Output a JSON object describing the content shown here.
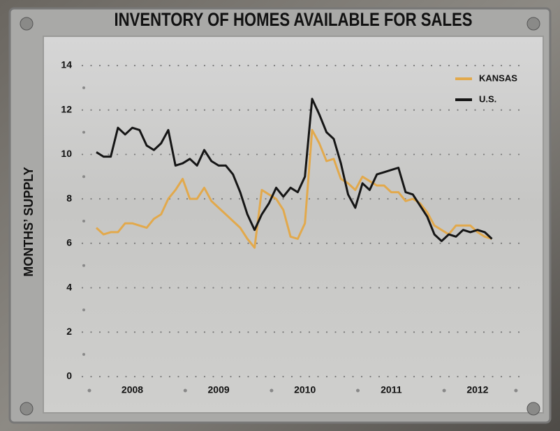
{
  "chart_data": {
    "type": "line",
    "title": "INVENTORY OF HOMES AVAILABLE FOR SALES",
    "y_label": "MONTHS’ SUPPLY",
    "categories": [
      null,
      null,
      null,
      null,
      null,
      "2008",
      null,
      null,
      null,
      null,
      null,
      null,
      null,
      null,
      null,
      null,
      null,
      "2009",
      null,
      null,
      null,
      null,
      null,
      null,
      null,
      null,
      null,
      null,
      null,
      "2010",
      null,
      null,
      null,
      null,
      null,
      null,
      null,
      null,
      null,
      null,
      null,
      "2011",
      null,
      null,
      null,
      null,
      null,
      null,
      null,
      null,
      null,
      null,
      null,
      "2012",
      null,
      null
    ],
    "series": [
      {
        "name": "KANSAS",
        "color": "#e2a94c",
        "values": [
          6.7,
          6.4,
          6.5,
          6.5,
          6.9,
          6.9,
          6.8,
          6.7,
          7.1,
          7.3,
          8.0,
          8.4,
          8.9,
          8.0,
          8.0,
          8.5,
          7.9,
          7.6,
          7.3,
          7.0,
          6.7,
          6.2,
          5.8,
          8.4,
          8.2,
          8.0,
          7.5,
          6.3,
          6.2,
          6.9,
          11.1,
          10.5,
          9.7,
          9.8,
          8.9,
          8.7,
          8.4,
          9.0,
          8.8,
          8.6,
          8.6,
          8.3,
          8.3,
          7.9,
          8.0,
          7.8,
          7.4,
          6.8,
          6.6,
          6.4,
          6.8,
          6.8,
          6.8,
          6.5,
          6.3,
          6.2
        ]
      },
      {
        "name": "U.S.",
        "color": "#151515",
        "values": [
          10.1,
          9.9,
          9.9,
          11.2,
          10.9,
          11.2,
          11.1,
          10.4,
          10.2,
          10.5,
          11.1,
          9.5,
          9.6,
          9.8,
          9.5,
          10.2,
          9.7,
          9.5,
          9.5,
          9.1,
          8.3,
          7.3,
          6.6,
          7.3,
          7.8,
          8.5,
          8.1,
          8.5,
          8.3,
          9.0,
          12.5,
          11.8,
          11.0,
          10.7,
          9.6,
          8.2,
          7.6,
          8.7,
          8.4,
          9.1,
          9.2,
          9.3,
          9.4,
          8.3,
          8.2,
          7.7,
          7.2,
          6.4,
          6.1,
          6.4,
          6.3,
          6.6,
          6.5,
          6.6,
          6.5,
          6.2
        ]
      }
    ],
    "ylim": [
      0,
      14
    ],
    "yticks": [
      0,
      2,
      4,
      6,
      8,
      10,
      12,
      14
    ],
    "grid": true,
    "legend": "top-right"
  }
}
